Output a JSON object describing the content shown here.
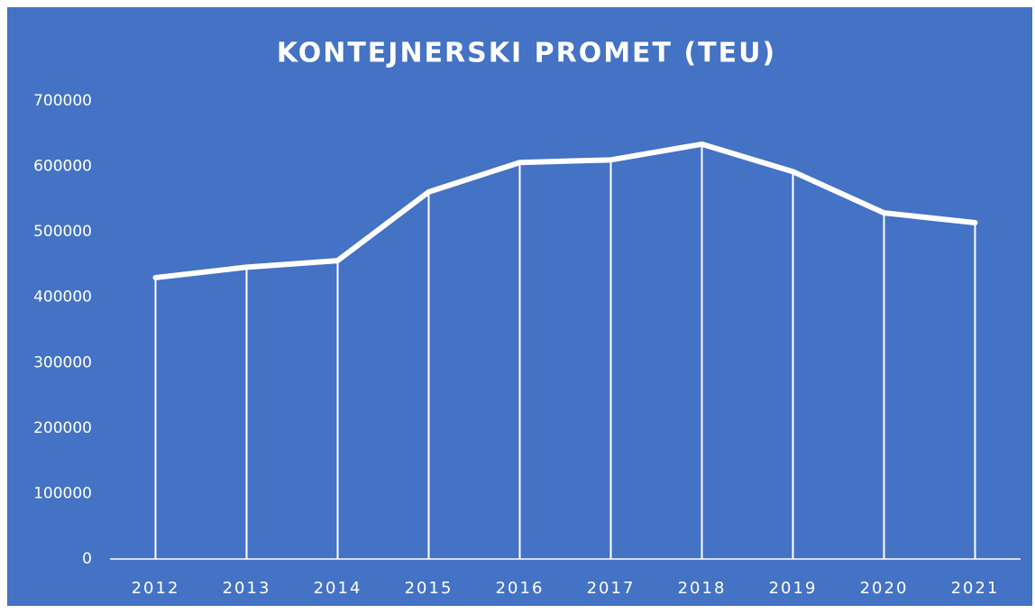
{
  "chart_data": {
    "type": "line",
    "title": "KONTEJNERSKI PROMET (TEU)",
    "categories": [
      "2012",
      "2013",
      "2014",
      "2015",
      "2016",
      "2017",
      "2018",
      "2019",
      "2020",
      "2021"
    ],
    "values": [
      430000,
      446000,
      456000,
      561000,
      606000,
      610000,
      634000,
      592000,
      529000,
      514000
    ],
    "color": "#ffffff",
    "background": "#4472c4",
    "drop_lines": true,
    "grid": false,
    "ylim": [
      0,
      700000
    ],
    "yticks": [
      0,
      100000,
      200000,
      300000,
      400000,
      500000,
      600000,
      700000
    ]
  }
}
